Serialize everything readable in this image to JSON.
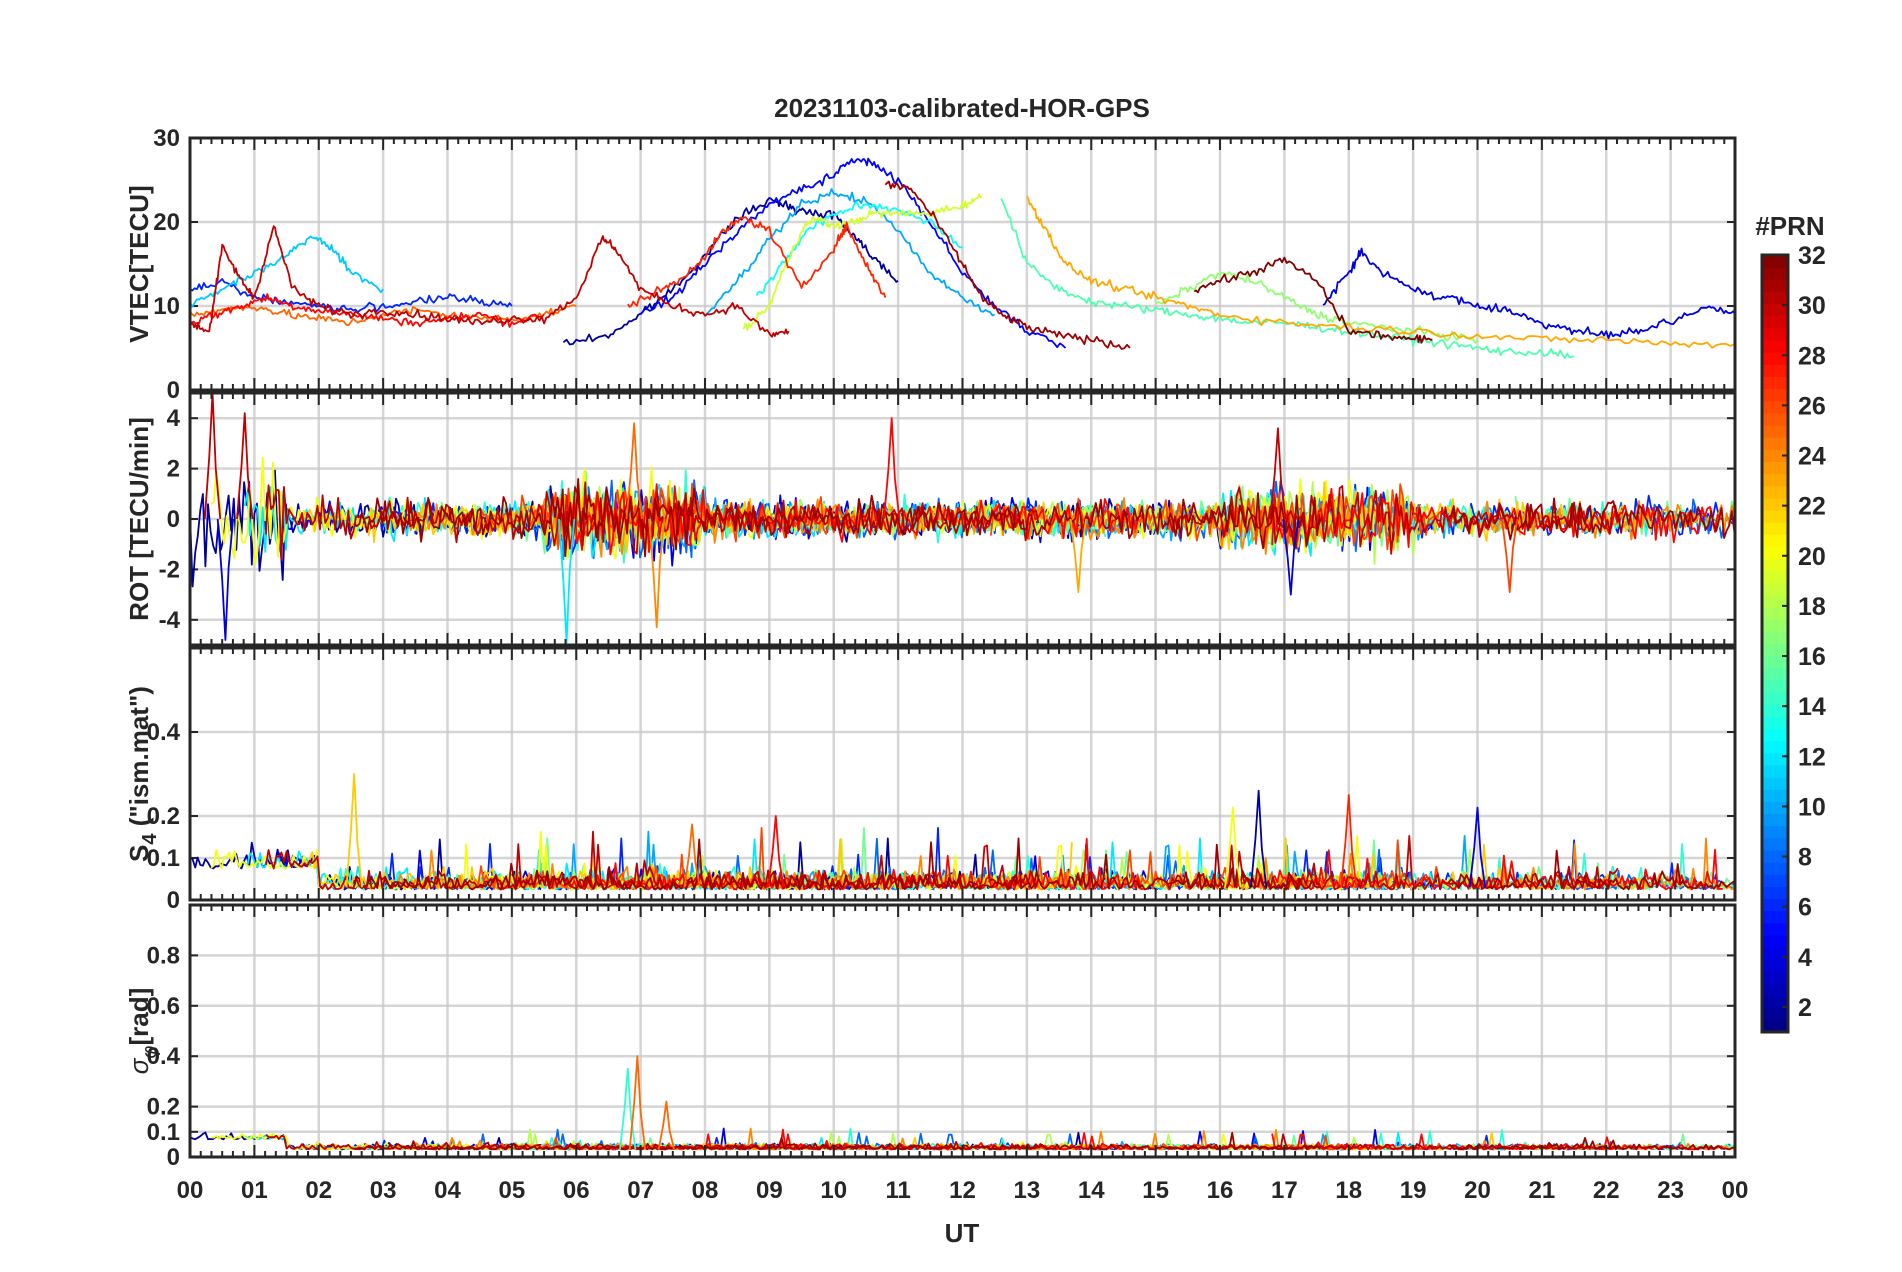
{
  "chart_data": {
    "type": "line",
    "title": "20231103-calibrated-HOR-GPS",
    "xlabel": "UT",
    "x_tick_labels": [
      "00",
      "01",
      "02",
      "03",
      "04",
      "05",
      "06",
      "07",
      "08",
      "09",
      "10",
      "11",
      "12",
      "13",
      "14",
      "15",
      "16",
      "17",
      "18",
      "19",
      "20",
      "21",
      "22",
      "23",
      "00"
    ],
    "xlim_hours": [
      0,
      24
    ],
    "colorbar": {
      "label": "#PRN",
      "range": [
        1,
        32
      ],
      "tick_labels": [
        "2",
        "4",
        "6",
        "8",
        "10",
        "12",
        "14",
        "16",
        "18",
        "20",
        "22",
        "24",
        "26",
        "28",
        "30",
        "32"
      ],
      "colormap": "jet"
    },
    "panels": [
      {
        "name": "vtec",
        "ylabel": "VTEC[TECU]",
        "ylim": [
          0,
          30
        ],
        "y_tick_labels": [
          "0",
          "10",
          "20",
          "30"
        ],
        "series": [
          {
            "prn": 2,
            "x": [
              5.8,
              6.5,
              7.0,
              7.5,
              8.0,
              8.5,
              9.0,
              9.3,
              9.6,
              10.0,
              10.3,
              10.6,
              11.0
            ],
            "y": [
              5.5,
              6.5,
              9.0,
              12.0,
              16.0,
              20.5,
              22.5,
              22.0,
              21.0,
              21.0,
              18.5,
              16.0,
              13.0
            ]
          },
          {
            "prn": 4,
            "x": [
              17.6,
              18.0,
              18.2,
              18.5,
              19.0,
              19.5,
              20.0,
              20.5,
              21.0,
              21.5,
              22.0,
              22.5,
              23.0,
              23.6,
              24.0
            ],
            "y": [
              10.0,
              14.0,
              16.5,
              14.0,
              12.0,
              11.0,
              10.0,
              9.5,
              8.0,
              7.0,
              6.5,
              7.0,
              8.0,
              10.0,
              9.0
            ]
          },
          {
            "prn": 5,
            "x": [
              7.0,
              7.5,
              8.0,
              8.5,
              9.0,
              9.5,
              10.0,
              10.3,
              10.6,
              11.0,
              11.5,
              12.0,
              12.5,
              13.0,
              13.6
            ],
            "y": [
              9.0,
              11.0,
              15.0,
              19.0,
              22.0,
              24.0,
              25.5,
              27.5,
              27.0,
              25.0,
              20.0,
              14.0,
              10.0,
              7.0,
              5.0
            ]
          },
          {
            "prn": 6,
            "x": [
              0.0,
              0.5,
              1.0,
              1.5,
              2.0,
              2.5,
              3.0,
              3.5,
              4.0,
              4.5,
              5.0
            ],
            "y": [
              12.0,
              13.0,
              11.0,
              10.5,
              10.0,
              9.5,
              10.0,
              10.5,
              11.0,
              10.5,
              10.0
            ]
          },
          {
            "prn": 10,
            "x": [
              8.0,
              8.5,
              9.0,
              9.5,
              10.0,
              10.5,
              11.0,
              11.5,
              12.0,
              12.5
            ],
            "y": [
              9.0,
              13.0,
              18.0,
              22.0,
              23.5,
              22.5,
              19.0,
              14.0,
              11.0,
              9.0
            ]
          },
          {
            "prn": 11,
            "x": [
              0.0,
              0.5,
              1.0,
              1.5,
              1.9,
              2.2,
              2.5,
              3.0
            ],
            "y": [
              10.0,
              12.0,
              14.0,
              16.0,
              18.5,
              17.0,
              14.0,
              12.0
            ]
          },
          {
            "prn": 13,
            "x": [
              8.8,
              9.2,
              9.6,
              10.0,
              10.5,
              11.0,
              11.5,
              12.0
            ],
            "y": [
              11.0,
              15.0,
              19.0,
              21.0,
              22.0,
              21.5,
              20.0,
              17.0
            ]
          },
          {
            "prn": 15,
            "x": [
              12.6,
              13.0,
              13.5,
              14.0,
              14.5,
              15.0,
              15.5,
              16.0,
              16.5,
              17.0,
              17.5,
              18.0,
              18.5,
              19.0,
              19.5,
              20.0,
              20.5,
              21.0,
              21.5
            ],
            "y": [
              23.0,
              15.0,
              12.0,
              10.5,
              10.0,
              9.5,
              9.0,
              8.5,
              8.0,
              8.0,
              7.5,
              7.0,
              6.5,
              6.0,
              5.5,
              5.0,
              4.5,
              4.5,
              4.0
            ]
          },
          {
            "prn": 17,
            "x": [
              15.0,
              15.5,
              16.0,
              16.5,
              17.0,
              17.5,
              18.0,
              18.5,
              19.0,
              19.5,
              20.0
            ],
            "y": [
              10.0,
              12.0,
              14.0,
              13.0,
              11.0,
              9.0,
              8.0,
              7.5,
              7.0,
              6.5,
              6.0
            ]
          },
          {
            "prn": 19,
            "x": [
              8.6,
              9.0,
              9.2,
              9.5,
              9.7,
              10.0,
              10.3,
              10.6,
              11.0,
              11.5,
              12.0,
              12.3
            ],
            "y": [
              7.0,
              10.0,
              14.0,
              19.0,
              20.5,
              19.5,
              20.0,
              21.0,
              21.0,
              21.0,
              22.0,
              23.0
            ]
          },
          {
            "prn": 23,
            "x": [
              13.0,
              13.3,
              13.6,
              14.0,
              14.5,
              15.0,
              15.5,
              16.0,
              17.0,
              18.0,
              19.0,
              20.0,
              21.0,
              22.0,
              23.0,
              24.0
            ],
            "y": [
              23.0,
              19.0,
              15.0,
              13.0,
              12.0,
              11.0,
              10.0,
              9.0,
              8.0,
              7.5,
              7.0,
              6.5,
              6.0,
              6.0,
              5.5,
              5.5
            ]
          },
          {
            "prn": 25,
            "x": [
              0.0,
              0.5,
              1.0,
              1.5,
              2.0,
              2.5,
              3.0,
              3.5,
              4.0,
              4.5,
              5.0,
              5.5,
              6.0
            ],
            "y": [
              9.0,
              9.5,
              10.0,
              9.0,
              8.5,
              8.0,
              9.0,
              9.5,
              9.0,
              8.5,
              8.5,
              9.0,
              10.0
            ]
          },
          {
            "prn": 27,
            "x": [
              6.8,
              7.2,
              7.6,
              8.0,
              8.3,
              8.6,
              9.0,
              9.5,
              10.0,
              10.2,
              10.5,
              10.8
            ],
            "y": [
              10.0,
              11.5,
              13.0,
              16.0,
              19.0,
              20.5,
              19.0,
              12.0,
              17.0,
              19.5,
              15.0,
              11.0
            ]
          },
          {
            "prn": 28,
            "x": [
              0.0,
              0.4,
              0.8,
              1.2,
              1.6,
              2.0,
              2.5,
              3.0,
              3.5,
              4.0,
              4.5,
              5.0,
              5.5
            ],
            "y": [
              8.0,
              9.0,
              10.0,
              11.0,
              10.0,
              9.5,
              9.0,
              8.5,
              8.0,
              8.5,
              9.0,
              8.0,
              9.0
            ]
          },
          {
            "prn": 30,
            "x": [
              0.0,
              0.3,
              0.5,
              0.8,
              1.0,
              1.3,
              1.6,
              2.0,
              2.5,
              3.0,
              3.5,
              4.0,
              4.5,
              5.0,
              5.5,
              6.0,
              6.4,
              6.6,
              7.0,
              7.5,
              8.0,
              8.5,
              9.0,
              9.3
            ],
            "y": [
              8.0,
              7.0,
              17.0,
              13.0,
              11.0,
              19.5,
              12.0,
              10.0,
              9.0,
              9.5,
              9.0,
              8.5,
              8.0,
              8.5,
              8.5,
              11.0,
              18.0,
              17.0,
              12.0,
              10.0,
              9.0,
              10.0,
              6.5,
              7.0
            ]
          },
          {
            "prn": 31,
            "x": [
              10.8,
              11.2,
              11.6,
              12.0,
              12.3,
              12.6,
              13.0,
              13.5,
              14.0,
              14.6
            ],
            "y": [
              24.5,
              24.0,
              20.0,
              15.0,
              11.0,
              9.0,
              7.5,
              6.5,
              6.0,
              5.0
            ]
          },
          {
            "prn": 32,
            "x": [
              15.6,
              16.0,
              16.5,
              17.0,
              17.5,
              18.0,
              18.5,
              19.0,
              19.3
            ],
            "y": [
              12.0,
              13.0,
              14.0,
              15.5,
              13.0,
              7.0,
              6.5,
              6.0,
              6.0
            ]
          }
        ]
      },
      {
        "name": "rot",
        "ylabel": "ROT [TECU/min]",
        "ylim": [
          -5,
          5
        ],
        "y_tick_labels": [
          "-4",
          "-2",
          "0",
          "2",
          "4"
        ],
        "notable_peaks": [
          {
            "prn": 30,
            "x": 0.35,
            "y": 5.0
          },
          {
            "prn": 4,
            "x": 0.55,
            "y": -4.8
          },
          {
            "prn": 30,
            "x": 0.85,
            "y": 4.2
          },
          {
            "prn": 12,
            "x": 5.85,
            "y": -4.9
          },
          {
            "prn": 25,
            "x": 6.9,
            "y": 3.8
          },
          {
            "prn": 24,
            "x": 7.25,
            "y": -4.3
          },
          {
            "prn": 28,
            "x": 10.9,
            "y": 4.0
          },
          {
            "prn": 23,
            "x": 13.8,
            "y": -2.9
          },
          {
            "prn": 30,
            "x": 16.9,
            "y": 3.6
          },
          {
            "prn": 4,
            "x": 17.1,
            "y": -3.0
          },
          {
            "prn": 26,
            "x": 20.5,
            "y": -2.9
          }
        ]
      },
      {
        "name": "s4",
        "ylabel": "S4 (\"ism.mat\")",
        "ylabel_main": "S",
        "ylabel_sub": "4",
        "ylabel_rest": " (\"ism.mat\")",
        "ylim": [
          0,
          0.6
        ],
        "y_tick_labels": [
          "0",
          "0.1",
          "0.2",
          "0.4"
        ],
        "notable_peaks": [
          {
            "prn": 22,
            "x": 2.55,
            "y": 0.3
          },
          {
            "prn": 25,
            "x": 7.8,
            "y": 0.18
          },
          {
            "prn": 28,
            "x": 9.1,
            "y": 0.2
          },
          {
            "prn": 20,
            "x": 16.2,
            "y": 0.22
          },
          {
            "prn": 2,
            "x": 16.6,
            "y": 0.26
          },
          {
            "prn": 27,
            "x": 18.0,
            "y": 0.25
          },
          {
            "prn": 4,
            "x": 20.0,
            "y": 0.22
          }
        ]
      },
      {
        "name": "sigma_phi",
        "ylabel": "σφ[rad]",
        "ylabel_main": "σ",
        "ylabel_sub": "φ",
        "ylabel_rest": "[rad]",
        "ylim": [
          0,
          1
        ],
        "y_tick_labels": [
          "0",
          "0.1",
          "0.2",
          "0.4",
          "0.6",
          "0.8"
        ],
        "notable_peaks": [
          {
            "prn": 14,
            "x": 6.8,
            "y": 0.35
          },
          {
            "prn": 25,
            "x": 6.95,
            "y": 0.4
          },
          {
            "prn": 25,
            "x": 7.4,
            "y": 0.22
          }
        ]
      }
    ]
  }
}
